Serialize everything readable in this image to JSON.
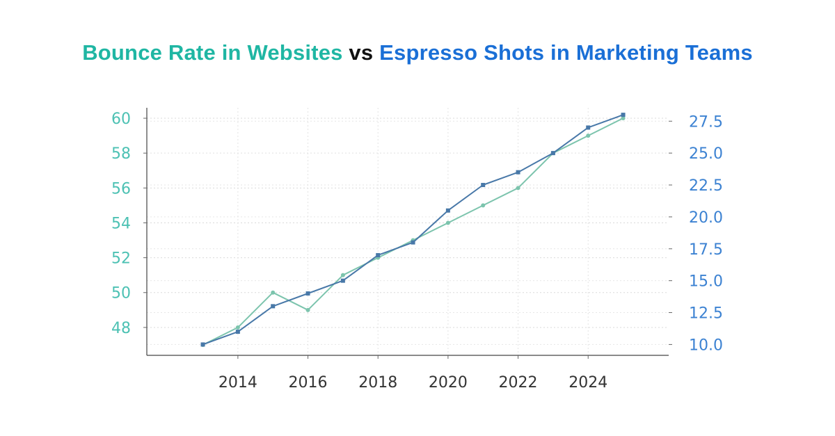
{
  "title": {
    "series1": "Bounce Rate in Websites",
    "vs": "vs",
    "series2": "Espresso Shots in Marketing Teams"
  },
  "colors": {
    "series1": "#7cc4ad",
    "series2": "#4878a8",
    "left_axis_text": "#4cc1b3",
    "right_axis_text": "#3c82d2",
    "x_axis_text": "#333333",
    "title_series1": "#1fb6a3",
    "title_series2": "#1a6fd6"
  },
  "chart_data": {
    "type": "line",
    "title": "Bounce Rate in Websites vs Espresso Shots in Marketing Teams",
    "x": [
      2013,
      2014,
      2015,
      2016,
      2017,
      2018,
      2019,
      2020,
      2021,
      2022,
      2023,
      2024,
      2025
    ],
    "xticks": [
      "2014",
      "2016",
      "2018",
      "2020",
      "2022",
      "2024"
    ],
    "xlim": [
      2011.4,
      2026.3
    ],
    "grid": true,
    "series": [
      {
        "name": "Bounce Rate in Websites",
        "axis": "left",
        "marker": "circle",
        "values": [
          47,
          48,
          50,
          49,
          51,
          52,
          53,
          54,
          55,
          56,
          58,
          59,
          60
        ]
      },
      {
        "name": "Espresso Shots in Marketing Teams",
        "axis": "right",
        "marker": "square",
        "values": [
          10,
          11,
          13,
          14,
          15,
          17,
          18,
          20.5,
          22.5,
          23.5,
          25,
          27,
          28
        ]
      }
    ],
    "left_axis": {
      "ticks": [
        "48",
        "50",
        "52",
        "54",
        "56",
        "58",
        "60"
      ],
      "ylim": [
        46.4,
        60.6
      ]
    },
    "right_axis": {
      "ticks": [
        "10.0",
        "12.5",
        "15.0",
        "17.5",
        "20.0",
        "22.5",
        "25.0",
        "27.5"
      ],
      "ylim": [
        9.15,
        28.55
      ]
    }
  }
}
